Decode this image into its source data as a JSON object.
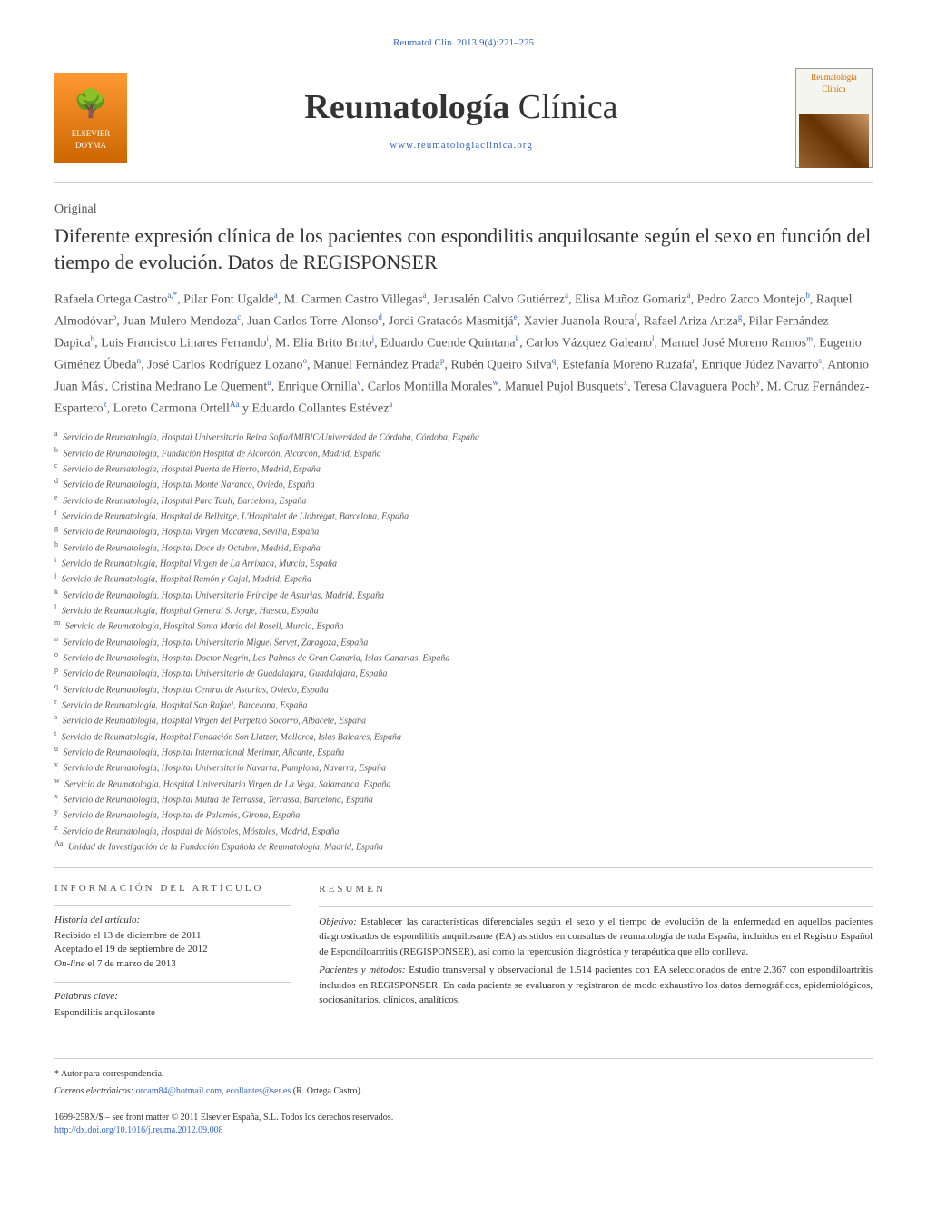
{
  "header": {
    "citation": "Reumatol Clin. 2013;9(4):221–225",
    "publisher_logo_text": "ELSEVIER DOYMA",
    "journal_title_bold": "Reumatología",
    "journal_title_light": " Clínica",
    "journal_url": "www.reumatologiaclinica.org",
    "cover_title": "Reumatología Clínica"
  },
  "article": {
    "type": "Original",
    "title": "Diferente expresión clínica de los pacientes con espondilitis anquilosante según el sexo en función del tiempo de evolución. Datos de REGISPONSER",
    "authors_html": "Rafaela Ortega Castro<sup>a,*</sup>, Pilar Font Ugalde<sup>a</sup>, M. Carmen Castro Villegas<sup>a</sup>, Jerusalén Calvo Gutiérrez<sup>a</sup>, Elisa Muñoz Gomariz<sup>a</sup>, Pedro Zarco Montejo<sup>b</sup>, Raquel Almodóvar<sup>b</sup>, Juan Mulero Mendoza<sup>c</sup>, Juan Carlos Torre-Alonso<sup>d</sup>, Jordi Gratacós Masmitjá<sup>e</sup>, Xavier Juanola Roura<sup>f</sup>, Rafael Ariza Ariza<sup>g</sup>, Pilar Fernández Dapica<sup>h</sup>, Luis Francisco Linares Ferrando<sup>i</sup>, M. Elia Brito Brito<sup>j</sup>, Eduardo Cuende Quintana<sup>k</sup>, Carlos Vázquez Galeano<sup>l</sup>, Manuel José Moreno Ramos<sup>m</sup>, Eugenio Giménez Úbeda<sup>n</sup>, José Carlos Rodríguez Lozano<sup>o</sup>, Manuel Fernández Prada<sup>p</sup>, Rubén Queiro Silva<sup>q</sup>, Estefanía Moreno Ruzafa<sup>r</sup>, Enrique Júdez Navarro<sup>s</sup>, Antonio Juan Más<sup>t</sup>, Cristina Medrano Le Quement<sup>u</sup>, Enrique Ornilla<sup>v</sup>, Carlos Montilla Morales<sup>w</sup>, Manuel Pujol Busquets<sup>x</sup>, Teresa Clavaguera Poch<sup>y</sup>, M. Cruz Fernández-Espartero<sup>z</sup>, Loreto Carmona Ortell<sup>Aa</sup> y Eduardo Collantes Estévez<sup>a</sup>"
  },
  "affiliations": [
    {
      "sup": "a",
      "text": "Servicio de Reumatología, Hospital Universitario Reina Sofía/IMIBIC/Universidad de Córdoba, Córdoba, España"
    },
    {
      "sup": "b",
      "text": "Servicio de Reumatología, Fundación Hospital de Alcorcón, Alcorcón, Madrid, España"
    },
    {
      "sup": "c",
      "text": "Servicio de Reumatología, Hospital Puerta de Hierro, Madrid, España"
    },
    {
      "sup": "d",
      "text": "Servicio de Reumatología, Hospital Monte Naranco, Oviedo, España"
    },
    {
      "sup": "e",
      "text": "Servicio de Reumatología, Hospital Parc Taulí, Barcelona, España"
    },
    {
      "sup": "f",
      "text": "Servicio de Reumatología, Hospital de Bellvitge, L'Hospitalet de Llobregat, Barcelona, España"
    },
    {
      "sup": "g",
      "text": "Servicio de Reumatología, Hospital Virgen Macarena, Sevilla, España"
    },
    {
      "sup": "h",
      "text": "Servicio de Reumatología, Hospital Doce de Octubre, Madrid, España"
    },
    {
      "sup": "i",
      "text": "Servicio de Reumatología, Hospital Virgen de La Arrixaca, Murcia, España"
    },
    {
      "sup": "j",
      "text": "Servicio de Reumatología, Hospital Ramón y Cajal, Madrid, España"
    },
    {
      "sup": "k",
      "text": "Servicio de Reumatología, Hospital Universitario Príncipe de Asturias, Madrid, España"
    },
    {
      "sup": "l",
      "text": "Servicio de Reumatología, Hospital General S. Jorge, Huesca, España"
    },
    {
      "sup": "m",
      "text": "Servicio de Reumatología, Hospital Santa María del Rosell, Murcia, España"
    },
    {
      "sup": "n",
      "text": "Servicio de Reumatología, Hospital Universitario Miguel Servet, Zaragoza, España"
    },
    {
      "sup": "o",
      "text": "Servicio de Reumatología, Hospital Doctor Negrín, Las Palmas de Gran Canaria, Islas Canarias, España"
    },
    {
      "sup": "p",
      "text": "Servicio de Reumatología, Hospital Universitario de Guadalajara, Guadalajara, España"
    },
    {
      "sup": "q",
      "text": "Servicio de Reumatología, Hospital Central de Asturias, Oviedo, España"
    },
    {
      "sup": "r",
      "text": "Servicio de Reumatología, Hospital San Rafael, Barcelona, España"
    },
    {
      "sup": "s",
      "text": "Servicio de Reumatología, Hospital Virgen del Perpetuo Socorro, Albacete, España"
    },
    {
      "sup": "t",
      "text": "Servicio de Reumatología, Hospital Fundación Son Llàtzer, Mallorca, Islas Baleares, España"
    },
    {
      "sup": "u",
      "text": "Servicio de Reumatología, Hospital Internacional Merimar, Alicante, España"
    },
    {
      "sup": "v",
      "text": "Servicio de Reumatología, Hospital Universitario Navarra, Pamplona, Navarra, España"
    },
    {
      "sup": "w",
      "text": "Servicio de Reumatología, Hospital Universitario Virgen de La Vega, Salamanca, España"
    },
    {
      "sup": "x",
      "text": "Servicio de Reumatología, Hospital Mutua de Terrassa, Terrassa, Barcelona, España"
    },
    {
      "sup": "y",
      "text": "Servicio de Reumatología, Hospital de Palamós, Girona, España"
    },
    {
      "sup": "z",
      "text": "Servicio de Reumatología, Hospital de Móstoles, Móstoles, Madrid, España"
    },
    {
      "sup": "Aa",
      "text": "Unidad de Investigación de la Fundación Española de Reumatología, Madrid, España"
    }
  ],
  "article_info": {
    "heading": "INFORMACIÓN DEL ARTÍCULO",
    "history_label": "Historia del artículo:",
    "received": "Recibido el 13 de diciembre de 2011",
    "accepted": "Aceptado el 19 de septiembre de 2012",
    "online": "On-line el 7 de marzo de 2013",
    "keywords_label": "Palabras clave:",
    "keyword1": "Espondilitis anquilosante"
  },
  "abstract": {
    "heading": "RESUMEN",
    "objetivo_label": "Objetivo:",
    "objetivo_text": "Establecer las características diferenciales según el sexo y el tiempo de evolución de la enfermedad en aquellos pacientes diagnosticados de espondilitis anquilosante (EA) asistidos en consultas de reumatología de toda España, incluidos en el Registro Español de Espondiloartritis (REGISPONSER), así como la repercusión diagnóstica y terapéutica que ello conlleva.",
    "metodos_label": "Pacientes y métodos:",
    "metodos_text": "Estudio transversal y observacional de 1.514 pacientes con EA seleccionados de entre 2.367 con espondiloartritis incluidos en REGISPONSER. En cada paciente se evaluaron y registraron de modo exhaustivo los datos demográficos, epidemiológicos, sociosanitarios, clínicos, analíticos,"
  },
  "footer": {
    "corresponding_label": "* Autor para correspondencia.",
    "email_label": "Correos electrónicos:",
    "email1": "orcam84@hotmail.com",
    "email2": "ecollantes@ser.es",
    "email_author": "(R. Ortega Castro).",
    "copyright": "1699-258X/$ – see front matter © 2011 Elsevier España, S.L. Todos los derechos reservados.",
    "doi": "http://dx.doi.org/10.1016/j.reuma.2012.09.008"
  }
}
